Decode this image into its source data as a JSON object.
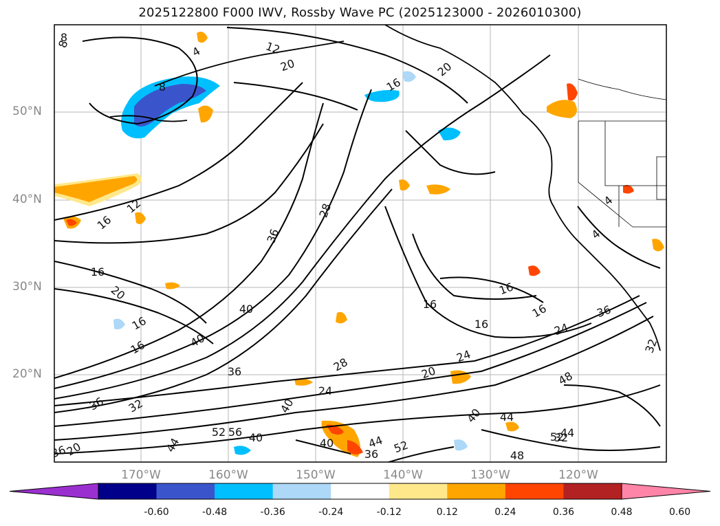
{
  "title": "2025122800 F000 IWV, Rossby Wave PC (2025123000 - 2026010300)",
  "lat_labels": [
    "50°N",
    "40°N",
    "30°N",
    "20°N"
  ],
  "lon_labels": [
    "170°W",
    "160°W",
    "150°W",
    "140°W",
    "130°W",
    "120°W"
  ],
  "colorbar": {
    "ticks": [
      "-0.60",
      "-0.48",
      "-0.36",
      "-0.24",
      "-0.12",
      "0.12",
      "0.24",
      "0.36",
      "0.48",
      "0.60"
    ],
    "colors": [
      "#9b30d0",
      "#00008b",
      "#3a55cc",
      "#00bfff",
      "#add8f7",
      "#ffffff",
      "#ffe88a",
      "#ffa500",
      "#ff4500",
      "#b22222",
      "#ff85a8"
    ]
  },
  "contour_labels": [
    "8",
    "4",
    "12",
    "20",
    "20",
    "16",
    "8",
    "40",
    "12",
    "16",
    "16",
    "20",
    "36",
    "28",
    "40",
    "16",
    "16",
    "16",
    "16",
    "16",
    "16",
    "24",
    "28",
    "20",
    "36",
    "24",
    "32",
    "36",
    "40",
    "44",
    "44",
    "48",
    "52",
    "56",
    "40",
    "40",
    "36",
    "52",
    "48",
    "52",
    "32",
    "44",
    "32",
    "24",
    "36",
    "40",
    "44",
    "4",
    "4",
    "36",
    "20",
    "8"
  ]
}
